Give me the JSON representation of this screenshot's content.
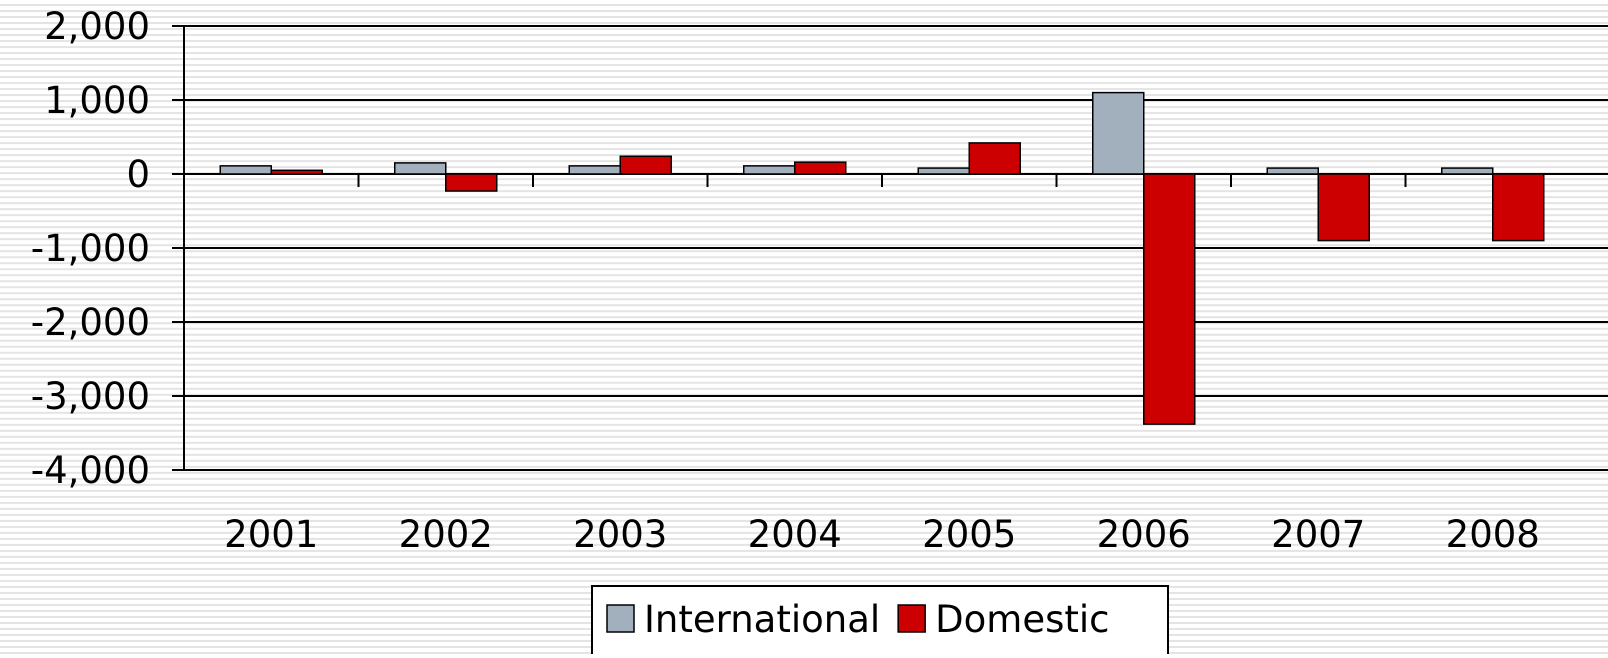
{
  "chart_data": {
    "type": "bar",
    "categories": [
      "2001",
      "2002",
      "2003",
      "2004",
      "2005",
      "2006",
      "2007",
      "2008"
    ],
    "series": [
      {
        "name": "International",
        "color": "#a2afbd",
        "values": [
          110,
          150,
          110,
          110,
          80,
          1100,
          80,
          80
        ]
      },
      {
        "name": "Domestic",
        "color": "#cc0000",
        "values": [
          50,
          -230,
          240,
          160,
          420,
          -3380,
          -900,
          -900
        ]
      }
    ],
    "ylim": [
      -4000,
      2000
    ],
    "yticks": [
      {
        "value": -4000,
        "label": "-4,000"
      },
      {
        "value": -3000,
        "label": "-3,000"
      },
      {
        "value": -2000,
        "label": "-2,000"
      },
      {
        "value": -1000,
        "label": "-1,000"
      },
      0,
      {
        "value": 1000,
        "label": "1,000"
      },
      {
        "value": 2000,
        "label": "2,000"
      }
    ],
    "grid": true,
    "legend": "bottom"
  }
}
